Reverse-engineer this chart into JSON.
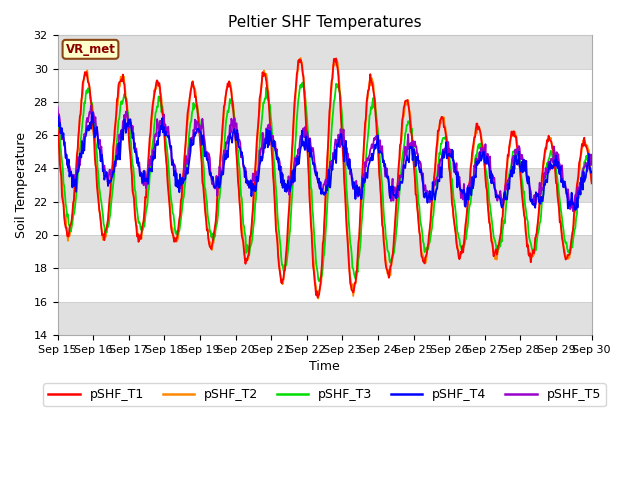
{
  "title": "Peltier SHF Temperatures",
  "xlabel": "Time",
  "ylabel": "Soil Temperature",
  "ylim": [
    14,
    32
  ],
  "yticks": [
    14,
    16,
    18,
    20,
    22,
    24,
    26,
    28,
    30,
    32
  ],
  "start_day": 15,
  "end_day": 30,
  "num_days": 15,
  "vr_label": "VR_met",
  "line_colors": {
    "pSHF_T1": "#ff0000",
    "pSHF_T2": "#ff8800",
    "pSHF_T3": "#00dd00",
    "pSHF_T4": "#0000ff",
    "pSHF_T5": "#9900cc"
  },
  "band_color": "#e0e0e0",
  "background_color": "#ffffff",
  "line_width": 1.3,
  "tick_label_fontsize": 8,
  "axis_label_fontsize": 9,
  "title_fontsize": 11,
  "vr_box_facecolor": "#ffffcc",
  "vr_box_edgecolor": "#8B4513",
  "figsize": [
    6.4,
    4.8
  ],
  "dpi": 100
}
